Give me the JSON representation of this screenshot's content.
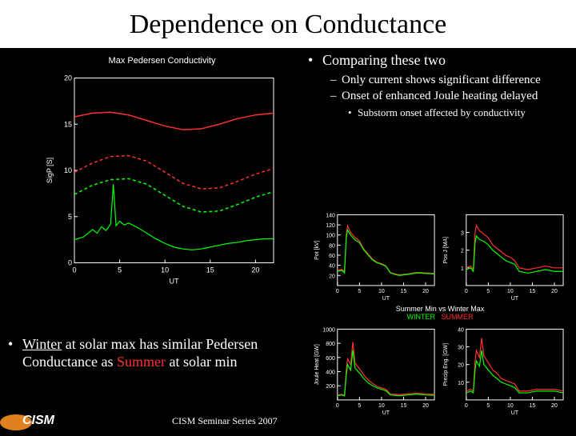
{
  "title": "Dependence on Conductance",
  "right_bullets": {
    "b1": "Comparing these two",
    "b2a": "Only current shows significant difference",
    "b2b": "Onset of enhanced Joule heating delayed",
    "b3": "Substorm onset affected by conductivity"
  },
  "bottom_left": {
    "pre": "",
    "winter": "Winter",
    "mid": " at solar max has similar Pedersen Conductance as ",
    "summer": "Summer",
    "post": " at solar min"
  },
  "footer": "CISM Seminar Series 2007",
  "logo_text": "CISM",
  "main_chart": {
    "title": "Max Pedersen Conductivity",
    "xlabel": "UT",
    "ylabel": "SigP [S]",
    "xlim": [
      0,
      22
    ],
    "xtick_step": 5,
    "ylim": [
      0,
      20
    ],
    "ytick_step": 5,
    "background_color": "#000000",
    "axis_color": "#ffffff",
    "series": [
      {
        "name": "red-solid",
        "color": "#ff3030",
        "dash": "none",
        "width": 1.5,
        "points": [
          [
            0,
            15.8
          ],
          [
            2,
            16.2
          ],
          [
            4,
            16.3
          ],
          [
            6,
            16.0
          ],
          [
            8,
            15.4
          ],
          [
            10,
            14.8
          ],
          [
            12,
            14.4
          ],
          [
            14,
            14.5
          ],
          [
            16,
            15.0
          ],
          [
            18,
            15.6
          ],
          [
            20,
            16.0
          ],
          [
            22,
            16.2
          ]
        ]
      },
      {
        "name": "red-dash",
        "color": "#ff3030",
        "dash": "4 3",
        "width": 1.5,
        "points": [
          [
            0,
            9.8
          ],
          [
            2,
            10.8
          ],
          [
            4,
            11.5
          ],
          [
            6,
            11.6
          ],
          [
            8,
            11.0
          ],
          [
            10,
            9.8
          ],
          [
            12,
            8.6
          ],
          [
            14,
            8.0
          ],
          [
            16,
            8.1
          ],
          [
            18,
            8.8
          ],
          [
            20,
            9.6
          ],
          [
            22,
            10.2
          ]
        ]
      },
      {
        "name": "green-dash",
        "color": "#00ff00",
        "dash": "4 3",
        "width": 1.5,
        "points": [
          [
            0,
            7.4
          ],
          [
            2,
            8.4
          ],
          [
            4,
            9.0
          ],
          [
            6,
            9.1
          ],
          [
            8,
            8.5
          ],
          [
            10,
            7.3
          ],
          [
            12,
            6.1
          ],
          [
            14,
            5.5
          ],
          [
            16,
            5.6
          ],
          [
            18,
            6.3
          ],
          [
            20,
            7.1
          ],
          [
            22,
            7.7
          ]
        ]
      },
      {
        "name": "green-noisy",
        "color": "#00ff00",
        "dash": "none",
        "width": 1.2,
        "points": [
          [
            0,
            2.5
          ],
          [
            1,
            2.8
          ],
          [
            2,
            3.6
          ],
          [
            2.5,
            3.2
          ],
          [
            3,
            3.9
          ],
          [
            3.5,
            3.5
          ],
          [
            4,
            4.2
          ],
          [
            4.3,
            8.5
          ],
          [
            4.6,
            4.0
          ],
          [
            5,
            4.5
          ],
          [
            5.5,
            4.1
          ],
          [
            6,
            4.3
          ],
          [
            7,
            3.8
          ],
          [
            8,
            3.2
          ],
          [
            9,
            2.6
          ],
          [
            10,
            2.1
          ],
          [
            11,
            1.7
          ],
          [
            12,
            1.5
          ],
          [
            13,
            1.4
          ],
          [
            14,
            1.5
          ],
          [
            15,
            1.7
          ],
          [
            16,
            1.9
          ],
          [
            17,
            2.1
          ],
          [
            18,
            2.2
          ],
          [
            19,
            2.4
          ],
          [
            20,
            2.5
          ],
          [
            21,
            2.6
          ],
          [
            22,
            2.6
          ]
        ]
      }
    ]
  },
  "small_charts": {
    "legend_title": "Summer Min vs Winter Max",
    "legend_winter": "WINTER",
    "legend_summer": "SUMMER",
    "xlim": [
      0,
      22
    ],
    "xtick_step": 5,
    "axis_color": "#ffffff",
    "colors": {
      "winter": "#00ff00",
      "summer": "#ff3030"
    },
    "panels": [
      {
        "id": "pot",
        "ylabel": "Pot [kV]",
        "ylim": [
          0,
          140
        ],
        "yticks": [
          20,
          40,
          60,
          80,
          100,
          120,
          140
        ],
        "winter": [
          [
            0,
            28
          ],
          [
            1,
            30
          ],
          [
            1.6,
            25
          ],
          [
            2,
            95
          ],
          [
            2.3,
            110
          ],
          [
            3,
            100
          ],
          [
            4,
            90
          ],
          [
            5,
            85
          ],
          [
            6,
            70
          ],
          [
            7,
            60
          ],
          [
            8,
            50
          ],
          [
            9,
            45
          ],
          [
            10,
            42
          ],
          [
            11,
            38
          ],
          [
            12,
            25
          ],
          [
            13,
            22
          ],
          [
            14,
            20
          ],
          [
            16,
            22
          ],
          [
            18,
            25
          ],
          [
            20,
            24
          ],
          [
            22,
            23
          ]
        ],
        "summer": [
          [
            0,
            30
          ],
          [
            1,
            32
          ],
          [
            1.6,
            28
          ],
          [
            2,
            100
          ],
          [
            2.3,
            118
          ],
          [
            3,
            105
          ],
          [
            4,
            95
          ],
          [
            5,
            88
          ],
          [
            6,
            72
          ],
          [
            7,
            62
          ],
          [
            8,
            52
          ],
          [
            9,
            46
          ],
          [
            10,
            43
          ],
          [
            11,
            39
          ],
          [
            12,
            26
          ],
          [
            13,
            23
          ],
          [
            14,
            21
          ],
          [
            16,
            23
          ],
          [
            18,
            26
          ],
          [
            20,
            25
          ],
          [
            22,
            24
          ]
        ]
      },
      {
        "id": "posj",
        "ylabel": "Pos J [MA]",
        "ylim": [
          0,
          4
        ],
        "yticks": [
          1,
          2,
          3
        ],
        "winter": [
          [
            0,
            0.9
          ],
          [
            1,
            1.0
          ],
          [
            1.6,
            0.8
          ],
          [
            2,
            2.4
          ],
          [
            2.3,
            2.8
          ],
          [
            3,
            2.6
          ],
          [
            4,
            2.5
          ],
          [
            5,
            2.3
          ],
          [
            6,
            2.0
          ],
          [
            7,
            1.8
          ],
          [
            8,
            1.6
          ],
          [
            9,
            1.4
          ],
          [
            10,
            1.3
          ],
          [
            11,
            1.2
          ],
          [
            12,
            0.8
          ],
          [
            14,
            0.7
          ],
          [
            16,
            0.8
          ],
          [
            18,
            0.9
          ],
          [
            20,
            0.8
          ],
          [
            22,
            0.8
          ]
        ],
        "summer": [
          [
            0,
            1.0
          ],
          [
            1,
            1.1
          ],
          [
            1.6,
            0.9
          ],
          [
            2,
            3.0
          ],
          [
            2.3,
            3.4
          ],
          [
            3,
            3.1
          ],
          [
            4,
            2.9
          ],
          [
            5,
            2.7
          ],
          [
            6,
            2.3
          ],
          [
            7,
            2.1
          ],
          [
            8,
            1.9
          ],
          [
            9,
            1.7
          ],
          [
            10,
            1.6
          ],
          [
            11,
            1.4
          ],
          [
            12,
            1.0
          ],
          [
            14,
            0.9
          ],
          [
            16,
            1.0
          ],
          [
            18,
            1.1
          ],
          [
            20,
            1.0
          ],
          [
            22,
            1.0
          ]
        ]
      },
      {
        "id": "joule",
        "ylabel": "Joule Heat [GW]",
        "ylim": [
          0,
          1000
        ],
        "yticks": [
          200,
          400,
          600,
          800,
          1000
        ],
        "winter": [
          [
            0,
            60
          ],
          [
            1,
            70
          ],
          [
            1.6,
            55
          ],
          [
            2,
            350
          ],
          [
            2.3,
            500
          ],
          [
            3,
            420
          ],
          [
            3.5,
            700
          ],
          [
            4,
            450
          ],
          [
            5,
            380
          ],
          [
            6,
            300
          ],
          [
            7,
            240
          ],
          [
            8,
            200
          ],
          [
            9,
            170
          ],
          [
            10,
            150
          ],
          [
            11,
            130
          ],
          [
            12,
            70
          ],
          [
            14,
            60
          ],
          [
            16,
            70
          ],
          [
            18,
            80
          ],
          [
            20,
            70
          ],
          [
            22,
            65
          ]
        ],
        "summer": [
          [
            0,
            70
          ],
          [
            1,
            80
          ],
          [
            1.6,
            60
          ],
          [
            2,
            420
          ],
          [
            2.3,
            580
          ],
          [
            3,
            500
          ],
          [
            3.5,
            820
          ],
          [
            4,
            520
          ],
          [
            5,
            440
          ],
          [
            6,
            350
          ],
          [
            7,
            280
          ],
          [
            8,
            230
          ],
          [
            9,
            190
          ],
          [
            10,
            170
          ],
          [
            11,
            150
          ],
          [
            12,
            85
          ],
          [
            14,
            75
          ],
          [
            16,
            85
          ],
          [
            18,
            95
          ],
          [
            20,
            85
          ],
          [
            22,
            80
          ]
        ]
      },
      {
        "id": "precip",
        "ylabel": "Precip Eng. [GW]",
        "ylim": [
          0,
          40
        ],
        "yticks": [
          10,
          20,
          30,
          40
        ],
        "winter": [
          [
            0,
            4
          ],
          [
            1,
            5
          ],
          [
            1.6,
            4
          ],
          [
            2,
            17
          ],
          [
            2.3,
            22
          ],
          [
            3,
            19
          ],
          [
            3.5,
            28
          ],
          [
            4,
            20
          ],
          [
            5,
            17
          ],
          [
            6,
            14
          ],
          [
            7,
            12
          ],
          [
            8,
            10
          ],
          [
            9,
            9
          ],
          [
            10,
            8
          ],
          [
            11,
            7
          ],
          [
            12,
            4
          ],
          [
            14,
            4
          ],
          [
            16,
            5
          ],
          [
            18,
            5
          ],
          [
            20,
            5
          ],
          [
            22,
            4
          ]
        ],
        "summer": [
          [
            0,
            5
          ],
          [
            1,
            6
          ],
          [
            1.6,
            5
          ],
          [
            2,
            22
          ],
          [
            2.3,
            28
          ],
          [
            3,
            24
          ],
          [
            3.5,
            35
          ],
          [
            4,
            25
          ],
          [
            5,
            21
          ],
          [
            6,
            17
          ],
          [
            7,
            15
          ],
          [
            8,
            12
          ],
          [
            9,
            11
          ],
          [
            10,
            10
          ],
          [
            11,
            9
          ],
          [
            12,
            5
          ],
          [
            14,
            5
          ],
          [
            16,
            6
          ],
          [
            18,
            6
          ],
          [
            20,
            6
          ],
          [
            22,
            5
          ]
        ]
      }
    ]
  }
}
